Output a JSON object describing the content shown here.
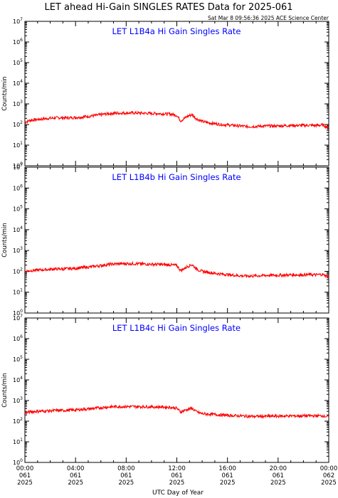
{
  "figure": {
    "title": "LET ahead Hi-Gain SINGLES RATES Data for 2025-061",
    "timestamp": "Sat Mar  8 09:56:36 2025 ACE Science Center",
    "xlabel": "UTC Day of Year",
    "ylabel": "Counts/min"
  },
  "colors": {
    "line": "#ff0000",
    "panel_title": "#0000ff",
    "axes": "#000000",
    "background": "#ffffff"
  },
  "chart_data": [
    {
      "type": "line",
      "title": "LET L1B4a Hi Gain Singles Rate",
      "ylabel": "Counts/min",
      "yscale": "log",
      "ylim": [
        1,
        10000000
      ],
      "xlim": [
        0,
        24
      ],
      "x_ticks": [
        {
          "day": "061",
          "time": "00:00",
          "year": "2025"
        },
        {
          "day": "061",
          "time": "04:00",
          "year": "2025"
        },
        {
          "day": "061",
          "time": "08:00",
          "year": "2025"
        },
        {
          "day": "061",
          "time": "12:00",
          "year": "2025"
        },
        {
          "day": "061",
          "time": "16:00",
          "year": "2025"
        },
        {
          "day": "061",
          "time": "20:00",
          "year": "2025"
        },
        {
          "day": "062",
          "time": "00:00",
          "year": "2025"
        }
      ],
      "series": [
        {
          "x": [
            0,
            0.5,
            1,
            1.5,
            2,
            2.5,
            3,
            3.5,
            4,
            4.5,
            5,
            5.5,
            6,
            6.5,
            7,
            7.5,
            8,
            8.5,
            9,
            9.5,
            10,
            10.5,
            11,
            11.5,
            12,
            12.3,
            12.6,
            12.9,
            13.2,
            13.5,
            13.8,
            14,
            14.5,
            15,
            15.5,
            16,
            16.5,
            17,
            17.5,
            18,
            18.5,
            19,
            19.5,
            20,
            20.5,
            21,
            21.5,
            22,
            22.5,
            23,
            23.5,
            24
          ],
          "y": [
            130,
            165,
            175,
            190,
            200,
            210,
            215,
            210,
            220,
            230,
            250,
            270,
            300,
            330,
            350,
            355,
            360,
            365,
            360,
            350,
            345,
            340,
            330,
            320,
            280,
            150,
            200,
            260,
            300,
            200,
            160,
            140,
            120,
            110,
            100,
            95,
            90,
            85,
            80,
            80,
            82,
            85,
            85,
            85,
            88,
            90,
            90,
            90,
            92,
            90,
            95,
            70
          ]
        }
      ]
    },
    {
      "type": "line",
      "title": "LET L1B4b Hi Gain Singles Rate",
      "ylabel": "Counts/min",
      "yscale": "log",
      "ylim": [
        1,
        10000000
      ],
      "xlim": [
        0,
        24
      ],
      "x_ticks": [
        {
          "day": "061",
          "time": "00:00",
          "year": "2025"
        },
        {
          "day": "061",
          "time": "04:00",
          "year": "2025"
        },
        {
          "day": "061",
          "time": "08:00",
          "year": "2025"
        },
        {
          "day": "061",
          "time": "12:00",
          "year": "2025"
        },
        {
          "day": "061",
          "time": "16:00",
          "year": "2025"
        },
        {
          "day": "061",
          "time": "20:00",
          "year": "2025"
        },
        {
          "day": "062",
          "time": "00:00",
          "year": "2025"
        }
      ],
      "series": [
        {
          "x": [
            0,
            0.5,
            1,
            1.5,
            2,
            2.5,
            3,
            3.5,
            4,
            4.5,
            5,
            5.5,
            6,
            6.5,
            7,
            7.5,
            8,
            8.5,
            9,
            9.5,
            10,
            10.5,
            11,
            11.5,
            12,
            12.3,
            12.6,
            12.9,
            13.2,
            13.5,
            13.8,
            14,
            14.5,
            15,
            15.5,
            16,
            16.5,
            17,
            17.5,
            18,
            18.5,
            19,
            19.5,
            20,
            20.5,
            21,
            21.5,
            22,
            22.5,
            23,
            23.5,
            24
          ],
          "y": [
            100,
            110,
            115,
            120,
            125,
            130,
            130,
            135,
            140,
            150,
            160,
            175,
            190,
            210,
            225,
            230,
            235,
            235,
            230,
            225,
            220,
            215,
            210,
            205,
            190,
            110,
            140,
            180,
            210,
            140,
            110,
            100,
            90,
            80,
            75,
            70,
            65,
            62,
            60,
            60,
            62,
            64,
            65,
            65,
            66,
            68,
            68,
            68,
            70,
            68,
            72,
            55
          ]
        }
      ]
    },
    {
      "type": "line",
      "title": "LET L1B4c Hi Gain Singles Rate",
      "ylabel": "Counts/min",
      "yscale": "log",
      "ylim": [
        1,
        10000000
      ],
      "xlim": [
        0,
        24
      ],
      "x_ticks": [
        {
          "day": "061",
          "time": "00:00",
          "year": "2025"
        },
        {
          "day": "061",
          "time": "04:00",
          "year": "2025"
        },
        {
          "day": "061",
          "time": "08:00",
          "year": "2025"
        },
        {
          "day": "061",
          "time": "12:00",
          "year": "2025"
        },
        {
          "day": "061",
          "time": "16:00",
          "year": "2025"
        },
        {
          "day": "061",
          "time": "20:00",
          "year": "2025"
        },
        {
          "day": "062",
          "time": "00:00",
          "year": "2025"
        }
      ],
      "series": [
        {
          "x": [
            0,
            0.5,
            1,
            1.5,
            2,
            2.5,
            3,
            3.5,
            4,
            4.5,
            5,
            5.5,
            6,
            6.5,
            7,
            7.5,
            8,
            8.5,
            9,
            9.5,
            10,
            10.5,
            11,
            11.5,
            12,
            12.3,
            12.6,
            12.9,
            13.2,
            13.5,
            13.8,
            14,
            14.5,
            15,
            15.5,
            16,
            16.5,
            17,
            17.5,
            18,
            18.5,
            19,
            19.5,
            20,
            20.5,
            21,
            21.5,
            22,
            22.5,
            23,
            23.5,
            24
          ],
          "y": [
            250,
            290,
            300,
            310,
            320,
            330,
            330,
            340,
            350,
            370,
            390,
            420,
            450,
            480,
            500,
            505,
            510,
            510,
            505,
            500,
            495,
            490,
            480,
            470,
            420,
            280,
            330,
            380,
            420,
            300,
            250,
            230,
            220,
            210,
            200,
            190,
            185,
            180,
            175,
            170,
            170,
            172,
            175,
            175,
            178,
            180,
            180,
            180,
            182,
            180,
            185,
            160
          ]
        }
      ]
    }
  ]
}
